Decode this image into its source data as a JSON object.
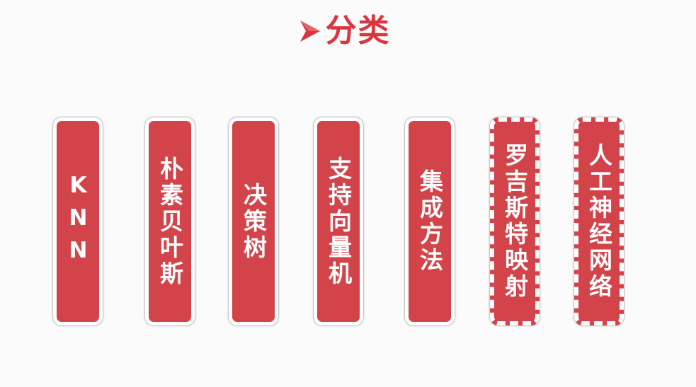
{
  "title": {
    "text": "分类",
    "arrow_icon": "arrow-right-icon",
    "color": "#d9363e"
  },
  "cards": [
    {
      "label": "KNN",
      "style": "solid"
    },
    {
      "label": "朴素贝叶斯",
      "style": "solid"
    },
    {
      "label": "决策树",
      "style": "solid"
    },
    {
      "label": "支持向量机",
      "style": "solid"
    },
    {
      "label": "集成方法",
      "style": "solid"
    },
    {
      "label": "罗吉斯特映射",
      "style": "dashed"
    },
    {
      "label": "人工神经网络",
      "style": "dashed"
    }
  ],
  "colors": {
    "card_fill": "#d2444a",
    "card_border": "#ffffff"
  }
}
